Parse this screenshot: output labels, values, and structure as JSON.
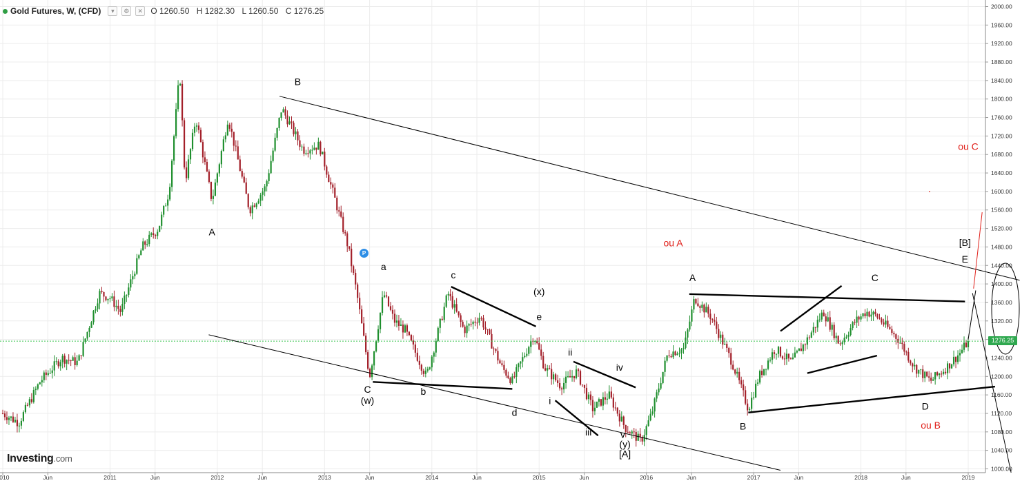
{
  "legend": {
    "symbol": "Gold Futures, W, (CFD)",
    "open": "O 1260.50",
    "high": "H 1282.30",
    "low": "L 1260.50",
    "close": "C 1276.25",
    "collapse_icon": "chevron-down-icon",
    "settings_icon": "gear-icon",
    "close_icon": "close-icon"
  },
  "brand": {
    "name": "Investing",
    "tld": ".com"
  },
  "current_price_label": "1276.25",
  "pointer_badge": "P",
  "colors": {
    "up": "#1f8f2e",
    "down": "#a3202a",
    "trendline": "#000000",
    "red_annotation": "#e0201a",
    "current_price_line": "#36c44c",
    "grid": "#ececec"
  },
  "chart_data": {
    "type": "candlestick",
    "instrument": "Gold Futures",
    "timeframe": "W",
    "ylim": [
      990,
      2010
    ],
    "y_ticks": [
      "2000.00",
      "1960.00",
      "1920.00",
      "1880.00",
      "1840.00",
      "1800.00",
      "1760.00",
      "1720.00",
      "1680.00",
      "1640.00",
      "1600.00",
      "1560.00",
      "1520.00",
      "1480.00",
      "1440.00",
      "1400.00",
      "1360.00",
      "1320.00",
      "1280.00",
      "1240.00",
      "1200.00",
      "1160.00",
      "1120.00",
      "1080.00",
      "1040.00",
      "1000.00"
    ],
    "x_ticks": [
      "2010",
      "Jun",
      "2011",
      "Jun",
      "2012",
      "Jun",
      "2013",
      "Jun",
      "2014",
      "Jun",
      "2015",
      "Jun",
      "2016",
      "Jun",
      "2017",
      "Jun",
      "2018",
      "Jun",
      "2019"
    ],
    "x_tick_years": [
      2010.0,
      2010.42,
      2011.0,
      2011.42,
      2012.0,
      2012.42,
      2013.0,
      2013.42,
      2014.0,
      2014.42,
      2015.0,
      2015.42,
      2016.0,
      2016.42,
      2017.0,
      2017.42,
      2018.0,
      2018.42,
      2019.0
    ],
    "x_range": [
      2010.0,
      2019.15
    ],
    "current_price": 1276.25,
    "price_path": [
      [
        2010.0,
        1120
      ],
      [
        2010.15,
        1100
      ],
      [
        2010.35,
        1190
      ],
      [
        2010.55,
        1240
      ],
      [
        2010.7,
        1230
      ],
      [
        2010.9,
        1380
      ],
      [
        2011.0,
        1370
      ],
      [
        2011.1,
        1340
      ],
      [
        2011.3,
        1480
      ],
      [
        2011.45,
        1520
      ],
      [
        2011.55,
        1600
      ],
      [
        2011.65,
        1860
      ],
      [
        2011.7,
        1620
      ],
      [
        2011.8,
        1760
      ],
      [
        2011.95,
        1580
      ],
      [
        2012.1,
        1760
      ],
      [
        2012.3,
        1560
      ],
      [
        2012.45,
        1610
      ],
      [
        2012.6,
        1780
      ],
      [
        2012.8,
        1690
      ],
      [
        2012.95,
        1700
      ],
      [
        2013.1,
        1580
      ],
      [
        2013.22,
        1480
      ],
      [
        2013.3,
        1380
      ],
      [
        2013.42,
        1200
      ],
      [
        2013.55,
        1380
      ],
      [
        2013.65,
        1320
      ],
      [
        2013.75,
        1300
      ],
      [
        2013.95,
        1200
      ],
      [
        2014.15,
        1380
      ],
      [
        2014.3,
        1300
      ],
      [
        2014.45,
        1330
      ],
      [
        2014.65,
        1220
      ],
      [
        2014.75,
        1190
      ],
      [
        2014.95,
        1290
      ],
      [
        2015.05,
        1220
      ],
      [
        2015.2,
        1180
      ],
      [
        2015.35,
        1210
      ],
      [
        2015.5,
        1130
      ],
      [
        2015.65,
        1160
      ],
      [
        2015.8,
        1090
      ],
      [
        2015.95,
        1060
      ],
      [
        2016.05,
        1120
      ],
      [
        2016.2,
        1250
      ],
      [
        2016.35,
        1260
      ],
      [
        2016.45,
        1370
      ],
      [
        2016.6,
        1330
      ],
      [
        2016.8,
        1230
      ],
      [
        2016.95,
        1130
      ],
      [
        2017.05,
        1200
      ],
      [
        2017.2,
        1260
      ],
      [
        2017.35,
        1230
      ],
      [
        2017.5,
        1280
      ],
      [
        2017.65,
        1340
      ],
      [
        2017.8,
        1270
      ],
      [
        2017.95,
        1320
      ],
      [
        2018.05,
        1340
      ],
      [
        2018.15,
        1330
      ],
      [
        2018.35,
        1280
      ],
      [
        2018.5,
        1220
      ],
      [
        2018.65,
        1190
      ],
      [
        2018.8,
        1220
      ],
      [
        2018.92,
        1250
      ],
      [
        2019.0,
        1276
      ]
    ]
  },
  "trendlines": [
    {
      "from": [
        2012.58,
        1806
      ],
      "to": [
        2019.48,
        1408
      ]
    },
    {
      "from": [
        2011.92,
        1290
      ],
      "to": [
        2017.25,
        997
      ]
    },
    {
      "from": [
        2013.45,
        1188
      ],
      "to": [
        2014.75,
        1173
      ]
    },
    {
      "from": [
        2014.18,
        1394
      ],
      "to": [
        2014.97,
        1308
      ]
    },
    {
      "from": [
        2015.32,
        1232
      ],
      "to": [
        2015.9,
        1176
      ]
    },
    {
      "from": [
        2015.15,
        1148
      ],
      "to": [
        2015.55,
        1072
      ]
    },
    {
      "from": [
        2016.4,
        1378
      ],
      "to": [
        2018.97,
        1362
      ]
    },
    {
      "from": [
        2016.95,
        1122
      ],
      "to": [
        2019.25,
        1178
      ]
    },
    {
      "from": [
        2017.25,
        1298
      ],
      "to": [
        2017.82,
        1396
      ]
    },
    {
      "from": [
        2017.5,
        1207
      ],
      "to": [
        2018.15,
        1245
      ]
    }
  ],
  "projection_lines": [
    {
      "color": "red",
      "from": [
        2019.05,
        1390
      ],
      "to": [
        2019.13,
        1555
      ]
    },
    {
      "color": "black",
      "from": [
        2019.0,
        1280
      ],
      "to": [
        2019.07,
        1386
      ]
    },
    {
      "color": "black",
      "from": [
        2019.04,
        1380
      ],
      "to": [
        2019.4,
        992
      ]
    }
  ],
  "wave_labels": [
    {
      "text": "A",
      "at": [
        2011.95,
        1505
      ],
      "color": "black"
    },
    {
      "text": "B",
      "at": [
        2012.75,
        1830
      ],
      "color": "black"
    },
    {
      "text": "a",
      "at": [
        2013.55,
        1430
      ],
      "color": "black"
    },
    {
      "text": "c",
      "at": [
        2014.2,
        1412
      ],
      "color": "black"
    },
    {
      "text": "(x)",
      "at": [
        2015.0,
        1376
      ],
      "color": "black"
    },
    {
      "text": "e",
      "at": [
        2015.0,
        1322
      ],
      "color": "black"
    },
    {
      "text": "C",
      "at": [
        2013.4,
        1165
      ],
      "color": "black"
    },
    {
      "text": "(w)",
      "at": [
        2013.4,
        1141
      ],
      "color": "black"
    },
    {
      "text": "b",
      "at": [
        2013.92,
        1160
      ],
      "color": "black"
    },
    {
      "text": "d",
      "at": [
        2014.77,
        1115
      ],
      "color": "black"
    },
    {
      "text": "ii",
      "at": [
        2015.29,
        1245
      ],
      "color": "black"
    },
    {
      "text": "iv",
      "at": [
        2015.75,
        1212
      ],
      "color": "black"
    },
    {
      "text": "i",
      "at": [
        2015.1,
        1140
      ],
      "color": "black"
    },
    {
      "text": "iii",
      "at": [
        2015.46,
        1072
      ],
      "color": "black"
    },
    {
      "text": "v",
      "at": [
        2015.78,
        1067
      ],
      "color": "black"
    },
    {
      "text": "(y)",
      "at": [
        2015.8,
        1046
      ],
      "color": "black"
    },
    {
      "text": "[A]",
      "at": [
        2015.8,
        1025
      ],
      "color": "black"
    },
    {
      "text": "A",
      "at": [
        2016.43,
        1406
      ],
      "color": "black"
    },
    {
      "text": "C",
      "at": [
        2018.13,
        1406
      ],
      "color": "black"
    },
    {
      "text": "B",
      "at": [
        2016.9,
        1085
      ],
      "color": "black"
    },
    {
      "text": "D",
      "at": [
        2018.6,
        1128
      ],
      "color": "black"
    },
    {
      "text": "E",
      "at": [
        2018.97,
        1446
      ],
      "color": "black"
    },
    {
      "text": "[B]",
      "at": [
        2018.97,
        1482
      ],
      "color": "black"
    },
    {
      "text": "ou A",
      "at": [
        2016.25,
        1481
      ],
      "color": "red"
    },
    {
      "text": "ou C",
      "at": [
        2019.0,
        1690
      ],
      "color": "red"
    },
    {
      "text": "ou B",
      "at": [
        2018.65,
        1087
      ],
      "color": "red"
    }
  ]
}
